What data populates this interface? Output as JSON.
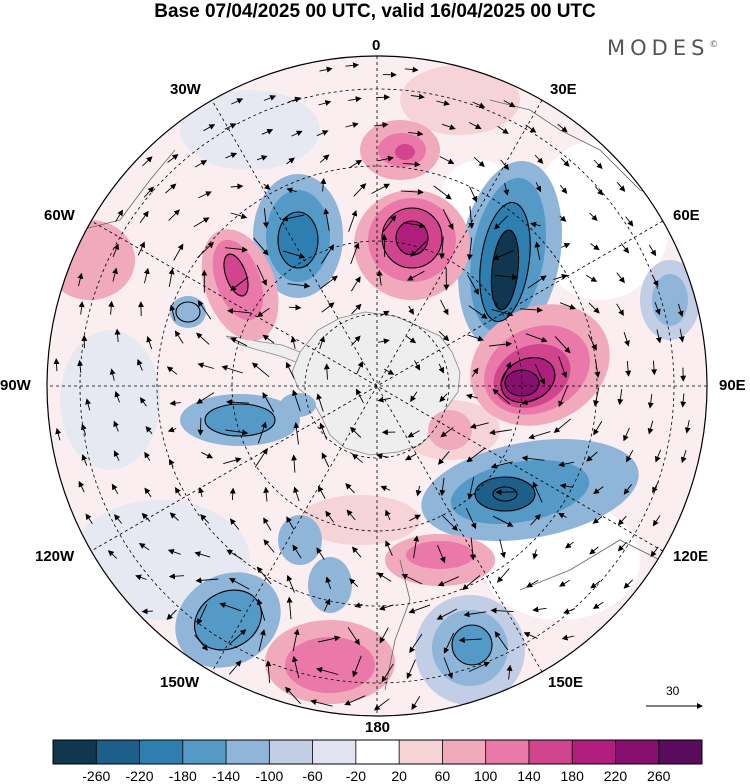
{
  "title": "Base 07/04/2025 00 UTC, valid 16/04/2025 00 UTC",
  "brand": "MODES",
  "brand_mark": "©",
  "longitude_labels": [
    "0",
    "30E",
    "60E",
    "90E",
    "120E",
    "150E",
    "180",
    "150W",
    "120W",
    "90W",
    "60W",
    "30W"
  ],
  "reference_vector": {
    "value": "30"
  },
  "colorbar": {
    "ticks": [
      "-260",
      "-220",
      "-180",
      "-140",
      "-100",
      "-60",
      "-20",
      "20",
      "60",
      "100",
      "140",
      "180",
      "220",
      "260"
    ],
    "colors": [
      "#10374f",
      "#1d5f88",
      "#2e7eb0",
      "#5599c7",
      "#8fb5d9",
      "#c2cde6",
      "#e1e4f0",
      "#ffffff",
      "#f6d3d7",
      "#f0aabc",
      "#ea79aa",
      "#d1458f",
      "#b01e7d",
      "#87106f",
      "#5b0b5e"
    ]
  },
  "map": {
    "projection": "south polar stereographic",
    "anomalies": [
      {
        "name": "blue-0-60W",
        "color": "#2e7eb0",
        "sign": "negative"
      },
      {
        "name": "pink-10E",
        "color": "#b01e7d",
        "sign": "positive"
      },
      {
        "name": "blue-40E",
        "color": "#10374f",
        "sign": "negative"
      },
      {
        "name": "purple-85E",
        "color": "#87106f",
        "sign": "positive"
      },
      {
        "name": "blue-120E",
        "color": "#1d5f88",
        "sign": "negative"
      },
      {
        "name": "pink-60W",
        "color": "#d1458f",
        "sign": "positive"
      }
    ]
  }
}
